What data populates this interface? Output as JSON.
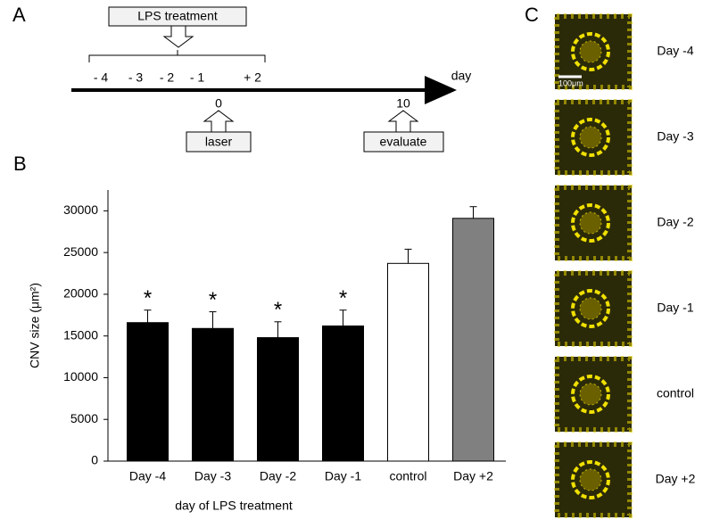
{
  "panel_a": {
    "label": "A",
    "treatment": "LPS treatment",
    "days": [
      "- 4",
      "- 3",
      "- 2",
      "- 1",
      "+ 2"
    ],
    "axis_label": "day",
    "events": [
      {
        "day": "0",
        "label": "laser"
      },
      {
        "day": "10",
        "label": "evaluate"
      }
    ]
  },
  "chart_data": {
    "type": "bar",
    "panel_label": "B",
    "y_label": "CNV size (μm²)",
    "x_label": "day of LPS treatment",
    "categories": [
      "Day -4",
      "Day -3",
      "Day -2",
      "Day -1",
      "control",
      "Day +2"
    ],
    "values": [
      16600,
      15900,
      14800,
      16200,
      23700,
      29100
    ],
    "errors": [
      1500,
      2000,
      1900,
      1900,
      1700,
      1400
    ],
    "colors": [
      "#000000",
      "#000000",
      "#000000",
      "#000000",
      "#ffffff",
      "#808080"
    ],
    "significance": [
      "*",
      "*",
      "*",
      "*",
      null,
      null
    ],
    "ylim": [
      0,
      32500
    ],
    "yticks": [
      0,
      5000,
      10000,
      15000,
      20000,
      25000,
      30000
    ]
  },
  "panel_c": {
    "label": "C",
    "scale_bar": "100μm",
    "images": [
      "Day -4",
      "Day -3",
      "Day -2",
      "Day -1",
      "control",
      "Day +2"
    ]
  }
}
